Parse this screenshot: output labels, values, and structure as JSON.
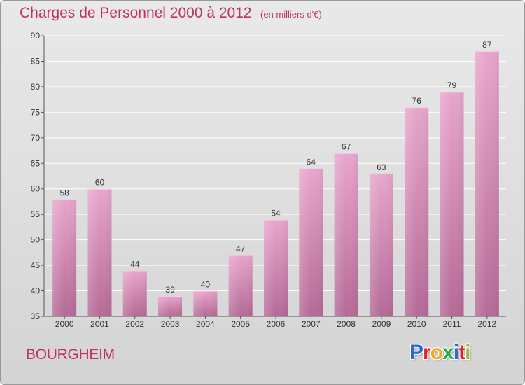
{
  "header": {
    "title": "Charges de Personnel 2000 à 2012",
    "subtitle": "(en milliers d'€)"
  },
  "footer": {
    "city": "BOURGHEIM",
    "logo_letters": [
      "P",
      "r",
      "o",
      "x",
      "i",
      "t",
      "i"
    ],
    "logo_colors": [
      "#2a6bd1",
      "#e2222a",
      "#f2a91c",
      "#2aa84a",
      "#2a6bd1",
      "#e2222a",
      "#8ac43f"
    ]
  },
  "chart_data": {
    "type": "bar",
    "categories": [
      "2000",
      "2001",
      "2002",
      "2003",
      "2004",
      "2005",
      "2006",
      "2007",
      "2008",
      "2009",
      "2010",
      "2011",
      "2012"
    ],
    "values": [
      58,
      60,
      44,
      39,
      40,
      47,
      54,
      64,
      67,
      63,
      76,
      79,
      87
    ],
    "ylim": [
      35,
      90
    ],
    "yticks": [
      35,
      40,
      45,
      50,
      55,
      60,
      65,
      70,
      75,
      80,
      85,
      90
    ],
    "grid": true,
    "bar_color_top": "#e8a6cc",
    "bar_color_bottom": "#b56a97",
    "grid_color": "#ffffff",
    "axis_color": "#555555"
  }
}
